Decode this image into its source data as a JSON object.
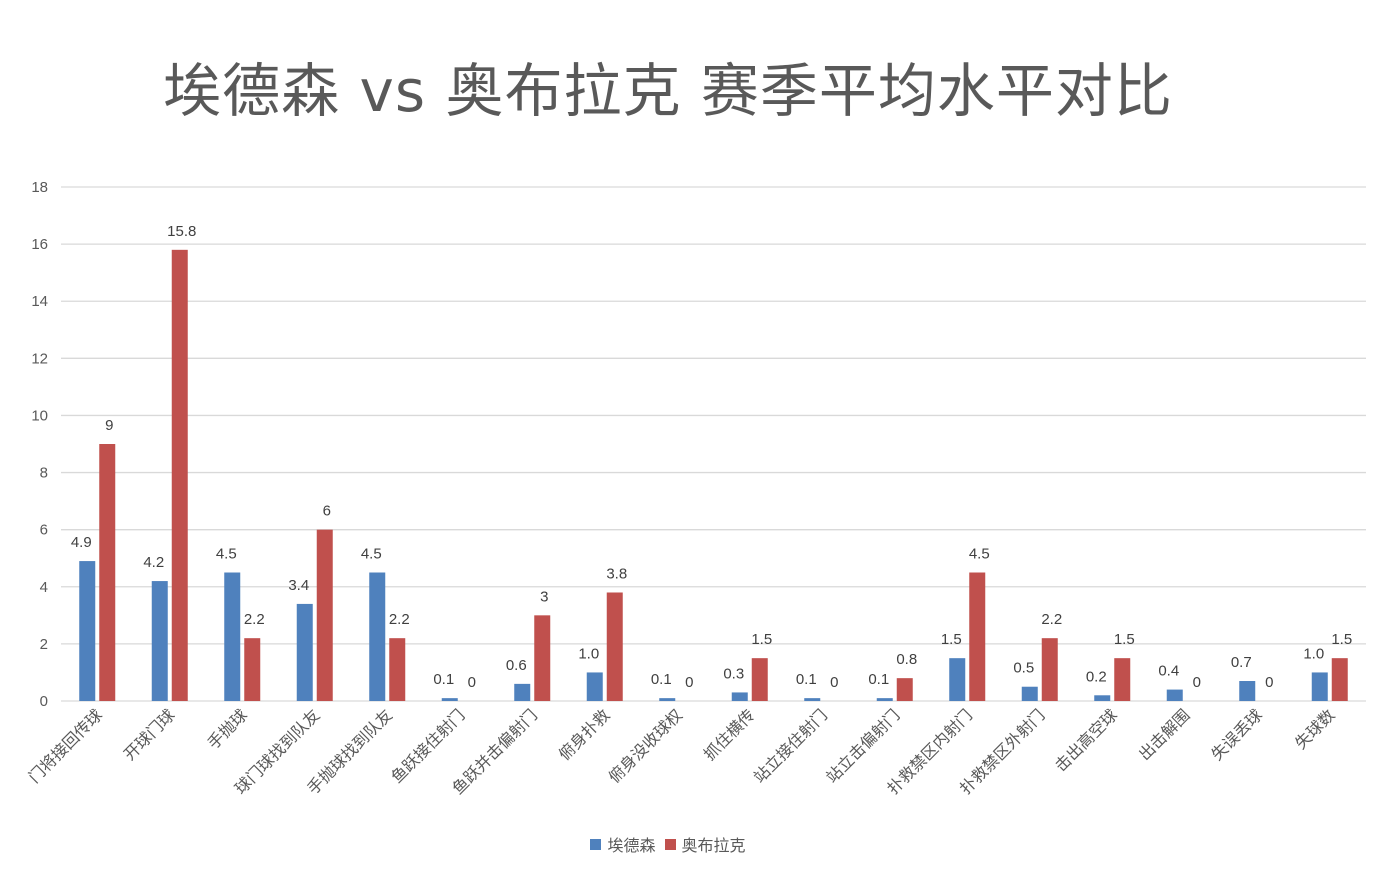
{
  "chart_data": {
    "type": "bar",
    "title": "埃德森 vs 奥布拉克 赛季平均水平对比",
    "xlabel": "",
    "ylabel": "",
    "ylim": [
      0,
      18
    ],
    "yticks": [
      0,
      2,
      4,
      6,
      8,
      10,
      12,
      14,
      16,
      18
    ],
    "grid": true,
    "legend_position": "bottom",
    "categories": [
      "门将接回传球",
      "开球门球",
      "手抛球",
      "球门球找到队友",
      "手抛球找到队友",
      "鱼跃接住射门",
      "鱼跃并击偏射门",
      "俯身扑救",
      "俯身没收球权",
      "抓住横传",
      "站立接住射门",
      "站立击偏射门",
      "扑救禁区内射门",
      "扑救禁区外射门",
      "击出高空球",
      "出击解围",
      "失误丢球",
      "失球数"
    ],
    "series": [
      {
        "name": "埃德森",
        "color": "#4F81BD",
        "values": [
          4.9,
          4.2,
          4.5,
          3.4,
          4.5,
          0.1,
          0.6,
          1.0,
          0.1,
          0.3,
          0.1,
          0.1,
          1.5,
          0.5,
          0.2,
          0.4,
          0.7,
          1.0
        ],
        "labels": [
          "4.9",
          "4.2",
          "4.5",
          "3.4",
          "4.5",
          "0.1",
          "0.6",
          "1.0",
          "0.1",
          "0.3",
          "0.1",
          "0.1",
          "1.5",
          "0.5",
          "0.2",
          "0.4",
          "0.7",
          "1.0"
        ]
      },
      {
        "name": "奥布拉克",
        "color": "#C0504D",
        "values": [
          9,
          15.8,
          2.2,
          6,
          2.2,
          0,
          3,
          3.8,
          0,
          1.5,
          0,
          0.8,
          4.5,
          2.2,
          1.5,
          0,
          0,
          1.5
        ],
        "labels": [
          "9",
          "15.8",
          "2.2",
          "6",
          "2.2",
          "0",
          "3",
          "3.8",
          "0",
          "1.5",
          "0",
          "0.8",
          "4.5",
          "2.2",
          "1.5",
          "0",
          "0",
          "1.5"
        ]
      }
    ]
  },
  "legend": {
    "items": [
      {
        "label": "埃德森",
        "color": "#4F81BD"
      },
      {
        "label": "奥布拉克",
        "color": "#C0504D"
      }
    ]
  }
}
